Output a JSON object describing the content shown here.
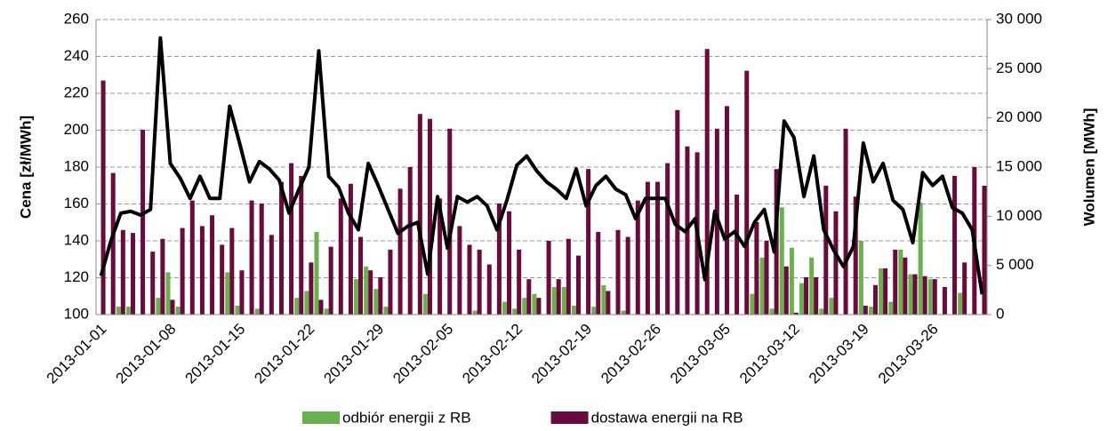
{
  "chart_data": {
    "type": "bar",
    "y_label": "Cena [zł/MWh]",
    "y2_label": "Wolumen [MWh]",
    "categories": [
      "2013-01-01",
      null,
      null,
      null,
      null,
      null,
      null,
      "2013-01-08",
      null,
      null,
      null,
      null,
      null,
      null,
      "2013-01-15",
      null,
      null,
      null,
      null,
      null,
      null,
      "2013-01-22",
      null,
      null,
      null,
      null,
      null,
      null,
      "2013-01-29",
      null,
      null,
      null,
      null,
      null,
      null,
      "2013-02-05",
      null,
      null,
      null,
      null,
      null,
      null,
      "2013-02-12",
      null,
      null,
      null,
      null,
      null,
      null,
      "2013-02-19",
      null,
      null,
      null,
      null,
      null,
      null,
      "2013-02-26",
      null,
      null,
      null,
      null,
      null,
      null,
      "2013-03-05",
      null,
      null,
      null,
      null,
      null,
      null,
      "2013-03-12",
      null,
      null,
      null,
      null,
      null,
      null,
      "2013-03-19",
      null,
      null,
      null,
      null,
      null,
      null,
      "2013-03-26",
      null,
      null,
      null,
      null,
      null
    ],
    "series": [
      {
        "name": "odbiór energii z RB",
        "color": "#6ab04c",
        "axis": "y2",
        "values": [
          0,
          0,
          800,
          800,
          0,
          0,
          1700,
          4300,
          800,
          0,
          0,
          0,
          0,
          4300,
          900,
          0,
          600,
          0,
          0,
          0,
          1700,
          2400,
          8400,
          600,
          0,
          0,
          3600,
          4900,
          2600,
          800,
          0,
          0,
          0,
          2100,
          0,
          0,
          0,
          0,
          400,
          0,
          0,
          1300,
          600,
          1700,
          2100,
          0,
          2800,
          2800,
          900,
          0,
          800,
          3000,
          0,
          400,
          0,
          0,
          0,
          0,
          0,
          0,
          0,
          0,
          0,
          0,
          0,
          0,
          2100,
          5800,
          600,
          10900,
          6800,
          3200,
          5800,
          600,
          1700,
          0,
          0,
          7500,
          800,
          4700,
          1300,
          6600,
          4100,
          11400,
          3600,
          0,
          0,
          2200,
          0,
          0
        ]
      },
      {
        "name": "dostawa energii na RB",
        "color": "#6b0a3c",
        "axis": "y2",
        "values": [
          23800,
          14400,
          8600,
          8300,
          18800,
          6400,
          7700,
          1500,
          8800,
          11600,
          9000,
          10100,
          7100,
          8800,
          4500,
          11600,
          11300,
          8100,
          13500,
          15400,
          14100,
          5300,
          1500,
          6900,
          11800,
          13300,
          7900,
          4500,
          3800,
          6600,
          12800,
          15000,
          20400,
          19900,
          11800,
          18900,
          9000,
          7100,
          6600,
          5100,
          11300,
          10500,
          6600,
          3600,
          1700,
          7500,
          3600,
          7700,
          6000,
          14800,
          8400,
          2400,
          8600,
          7900,
          11600,
          13500,
          13500,
          15400,
          20800,
          17100,
          16500,
          27000,
          18900,
          21200,
          12200,
          24800,
          9400,
          7500,
          14800,
          4900,
          200,
          3800,
          3800,
          13100,
          10500,
          18900,
          12000,
          900,
          3000,
          4700,
          6600,
          5800,
          4100,
          3900,
          3600,
          2800,
          14100,
          5300,
          15000,
          13100
        ]
      },
      {
        "type": "line",
        "color": "#000000",
        "values": [
          121,
          140,
          155,
          156,
          154,
          157,
          250,
          182,
          174,
          163,
          175,
          163,
          163,
          213,
          193,
          172,
          183,
          179,
          173,
          155,
          168,
          180,
          243,
          175,
          169,
          155,
          146,
          182,
          170,
          157,
          144,
          148,
          150,
          122,
          164,
          136,
          164,
          161,
          164,
          159,
          146,
          162,
          181,
          186,
          178,
          172,
          168,
          163,
          179,
          159,
          170,
          175,
          168,
          165,
          152,
          163,
          163,
          163,
          149,
          145,
          152,
          119,
          156,
          141,
          145,
          137,
          150,
          157,
          134,
          205,
          196,
          164,
          186,
          146,
          135,
          126,
          137,
          193,
          172,
          182,
          162,
          157,
          139,
          177,
          170,
          175,
          158,
          155,
          146,
          111
        ]
      }
    ],
    "ylim": [
      100,
      260
    ],
    "yticks": [
      100,
      120,
      140,
      160,
      180,
      200,
      220,
      240,
      260
    ],
    "y2lim": [
      0,
      30000
    ],
    "y2ticks": [
      0,
      {
        "value": 5000,
        "label": "5 000"
      },
      {
        "value": 10000,
        "label": "10 000"
      },
      {
        "value": 15000,
        "label": "15 000"
      },
      {
        "value": 20000,
        "label": "20 000"
      },
      {
        "value": 25000,
        "label": "25 000"
      },
      {
        "value": 30000,
        "label": "30 000"
      }
    ],
    "grid": true,
    "legend": "bottom"
  }
}
